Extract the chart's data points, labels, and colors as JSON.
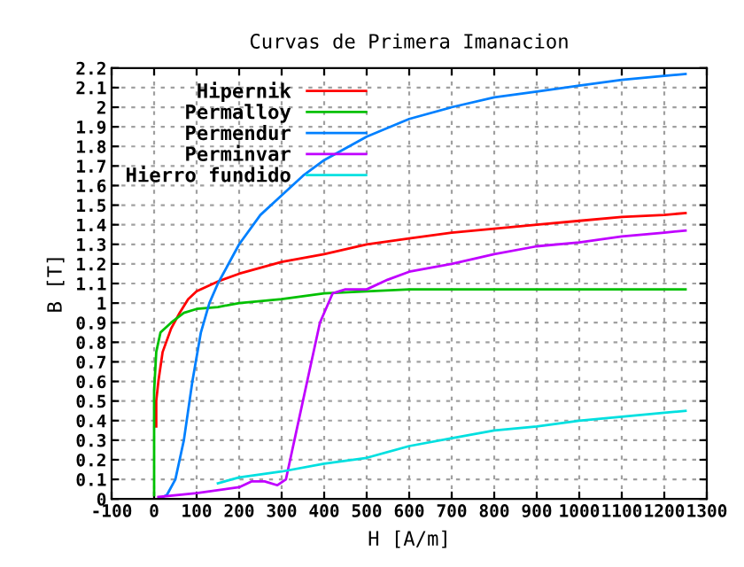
{
  "chart_data": {
    "type": "line",
    "title": "Curvas de Primera Imanacion",
    "xlabel": "H [A/m]",
    "ylabel": "B [T]",
    "xlim": [
      -100,
      1300
    ],
    "xticks": [
      -100,
      0,
      100,
      200,
      300,
      400,
      500,
      600,
      700,
      800,
      900,
      1000,
      1100,
      1200,
      1300
    ],
    "ylim": [
      0,
      2.2
    ],
    "yticks": [
      0,
      0.1,
      0.2,
      0.3,
      0.4,
      0.5,
      0.6,
      0.7,
      0.8,
      0.9,
      1,
      1.1,
      1.2,
      1.3,
      1.4,
      1.5,
      1.6,
      1.7,
      1.8,
      1.9,
      2,
      2.1,
      2.2
    ],
    "grid": true,
    "legend": "top left",
    "marker": "none",
    "line_style": "solid",
    "series": [
      {
        "name": "Hipernik",
        "color": "#ff0000",
        "x": [
          5,
          5,
          10,
          20,
          40,
          60,
          80,
          100,
          150,
          200,
          300,
          400,
          500,
          600,
          700,
          800,
          900,
          1000,
          1100,
          1200,
          1250
        ],
        "values": [
          0.37,
          0.5,
          0.6,
          0.75,
          0.87,
          0.95,
          1.02,
          1.06,
          1.11,
          1.15,
          1.21,
          1.25,
          1.3,
          1.33,
          1.36,
          1.38,
          1.4,
          1.42,
          1.44,
          1.45,
          1.46
        ]
      },
      {
        "name": "Permalloy",
        "color": "#00c000",
        "x": [
          0,
          0,
          5,
          15,
          40,
          70,
          100,
          150,
          200,
          300,
          400,
          500,
          600,
          1250
        ],
        "values": [
          0.02,
          0.55,
          0.75,
          0.85,
          0.9,
          0.95,
          0.97,
          0.98,
          1.0,
          1.02,
          1.05,
          1.06,
          1.07,
          1.07
        ]
      },
      {
        "name": "Permendur",
        "color": "#0080ff",
        "x": [
          10,
          30,
          50,
          70,
          90,
          110,
          130,
          150,
          200,
          250,
          300,
          350,
          400,
          500,
          600,
          700,
          800,
          900,
          1000,
          1100,
          1200,
          1250
        ],
        "values": [
          0,
          0.02,
          0.1,
          0.3,
          0.6,
          0.85,
          1.0,
          1.1,
          1.3,
          1.45,
          1.55,
          1.65,
          1.73,
          1.85,
          1.94,
          2.0,
          2.05,
          2.08,
          2.11,
          2.14,
          2.16,
          2.17
        ]
      },
      {
        "name": "Perminvar",
        "color": "#c000ff",
        "x": [
          10,
          100,
          200,
          230,
          260,
          290,
          310,
          330,
          360,
          390,
          420,
          450,
          500,
          550,
          600,
          700,
          800,
          900,
          1000,
          1100,
          1200,
          1250
        ],
        "values": [
          0.01,
          0.03,
          0.06,
          0.09,
          0.09,
          0.07,
          0.1,
          0.3,
          0.6,
          0.9,
          1.05,
          1.07,
          1.07,
          1.12,
          1.16,
          1.2,
          1.25,
          1.29,
          1.31,
          1.34,
          1.36,
          1.37
        ]
      },
      {
        "name": "Hierro fundido",
        "color": "#00e0e0",
        "x": [
          150,
          200,
          300,
          400,
          500,
          600,
          700,
          800,
          900,
          1000,
          1100,
          1200,
          1250
        ],
        "values": [
          0.08,
          0.11,
          0.14,
          0.18,
          0.21,
          0.27,
          0.31,
          0.35,
          0.37,
          0.4,
          0.42,
          0.44,
          0.45
        ]
      }
    ]
  }
}
